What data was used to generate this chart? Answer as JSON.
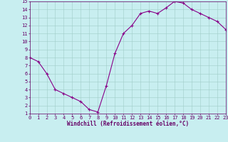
{
  "x": [
    0,
    1,
    2,
    3,
    4,
    5,
    6,
    7,
    8,
    9,
    10,
    11,
    12,
    13,
    14,
    15,
    16,
    17,
    18,
    19,
    20,
    21,
    22,
    23
  ],
  "y": [
    8.0,
    7.5,
    6.0,
    4.0,
    3.5,
    3.0,
    2.5,
    1.5,
    1.2,
    4.5,
    8.5,
    11.0,
    12.0,
    13.5,
    13.8,
    13.5,
    14.2,
    15.0,
    14.8,
    14.0,
    13.5,
    13.0,
    12.5,
    11.5
  ],
  "line_color": "#880088",
  "marker": "P",
  "bg_color": "#c8eef0",
  "grid_color": "#a0ccc8",
  "spine_color": "#660066",
  "tick_color": "#660066",
  "label_color": "#660066",
  "xlabel": "Windchill (Refroidissement éolien,°C)",
  "xlim": [
    0,
    23
  ],
  "ylim": [
    1,
    15
  ],
  "yticks": [
    1,
    2,
    3,
    4,
    5,
    6,
    7,
    8,
    9,
    10,
    11,
    12,
    13,
    14,
    15
  ],
  "xticks": [
    0,
    1,
    2,
    3,
    4,
    5,
    6,
    7,
    8,
    9,
    10,
    11,
    12,
    13,
    14,
    15,
    16,
    17,
    18,
    19,
    20,
    21,
    22,
    23
  ],
  "xlabel_fontsize": 5.5,
  "tick_fontsize": 5,
  "linewidth": 0.8,
  "markersize": 3
}
